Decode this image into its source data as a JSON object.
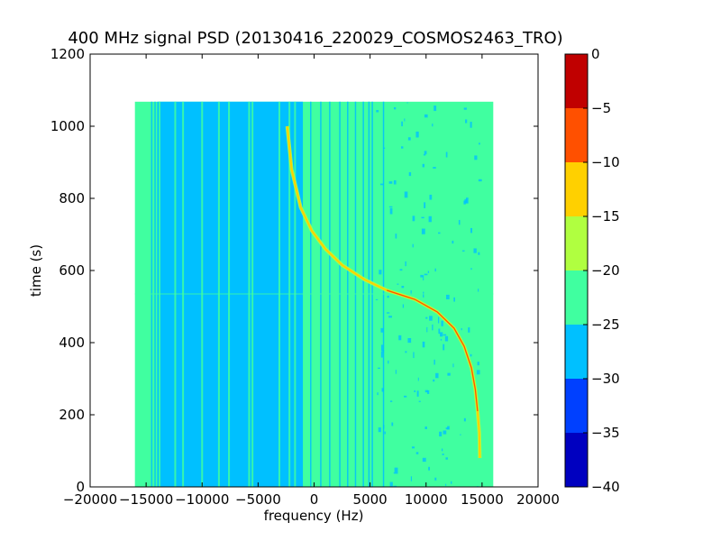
{
  "chart_data": {
    "type": "heatmap",
    "title": "400 MHz signal PSD (20130416_220029_COSMOS2463_TRO)",
    "xlabel": "frequency (Hz)",
    "ylabel": "time (s)",
    "xlim": [
      -20000,
      20000
    ],
    "ylim": [
      0,
      1200
    ],
    "xticks": [
      -20000,
      -15000,
      -10000,
      -5000,
      0,
      5000,
      10000,
      15000,
      20000
    ],
    "xtick_labels": [
      "−20000",
      "−15000",
      "−10000",
      "−5000",
      "0",
      "5000",
      "10000",
      "15000",
      "20000"
    ],
    "yticks": [
      0,
      200,
      400,
      600,
      800,
      1000,
      1200
    ],
    "ytick_labels": [
      "0",
      "200",
      "400",
      "600",
      "800",
      "1000",
      "1200"
    ],
    "data_extent": {
      "x": [
        -16000,
        16000
      ],
      "y": [
        0,
        1068
      ]
    },
    "background_level": "-25 to -20",
    "quiet_region": {
      "x": [
        -14000,
        -1000
      ],
      "level": "-30 to -25"
    },
    "vertical_lines_hz": [
      -14500,
      -14200,
      -13800,
      -12400,
      -11700,
      -10000,
      -8500,
      -7600,
      -5800,
      -5500,
      -3100,
      -2200,
      -1700,
      -300,
      600,
      1400,
      2300,
      3000,
      3700,
      4400,
      4900,
      5200,
      6200
    ],
    "transient_line_time_s": 535,
    "doppler_curve": [
      {
        "x": 14800,
        "y": 80
      },
      {
        "x": 14750,
        "y": 150
      },
      {
        "x": 14600,
        "y": 210
      },
      {
        "x": 14400,
        "y": 270
      },
      {
        "x": 14050,
        "y": 330
      },
      {
        "x": 13400,
        "y": 390
      },
      {
        "x": 12500,
        "y": 440
      },
      {
        "x": 11000,
        "y": 485
      },
      {
        "x": 9000,
        "y": 520
      },
      {
        "x": 6500,
        "y": 545
      },
      {
        "x": 4500,
        "y": 575
      },
      {
        "x": 2500,
        "y": 615
      },
      {
        "x": 1000,
        "y": 660
      },
      {
        "x": -200,
        "y": 710
      },
      {
        "x": -1200,
        "y": 775
      },
      {
        "x": -2000,
        "y": 880
      },
      {
        "x": -2400,
        "y": 1000
      }
    ],
    "colorbar": {
      "levels": [
        -40,
        -35,
        -30,
        -25,
        -20,
        -15,
        -10,
        -5,
        0
      ],
      "tick_labels": [
        "−40",
        "−35",
        "−30",
        "−25",
        "−20",
        "−15",
        "−10",
        "−5",
        "0"
      ],
      "colors": [
        "#0000c0",
        "#0040ff",
        "#00c0ff",
        "#40ffa0",
        "#b0ff40",
        "#ffd000",
        "#ff5000",
        "#c00000"
      ]
    }
  }
}
